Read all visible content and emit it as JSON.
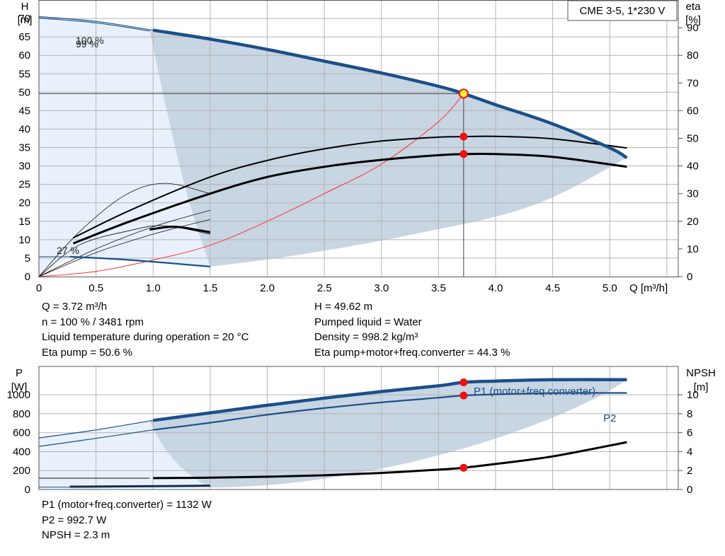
{
  "chart_data": [
    {
      "type": "line",
      "id": "head_efficiency",
      "title": "CME 3-5, 1*230 V",
      "xlabel": "Q [m³/h]",
      "ylabel_left": [
        "H",
        "[m]"
      ],
      "ylabel_right": [
        "eta",
        "[%]"
      ],
      "xlim": [
        0,
        5.6
      ],
      "ylim": [
        0,
        75
      ],
      "ylim_right": [
        0,
        100
      ],
      "x_ticks": [
        "0",
        "0.5",
        "1.0",
        "1.5",
        "2.0",
        "2.5",
        "3.0",
        "3.5",
        "4.0",
        "4.5",
        "5.0"
      ],
      "y_ticks": [
        "0",
        "5",
        "10",
        "15",
        "20",
        "25",
        "30",
        "35",
        "40",
        "45",
        "50",
        "55",
        "60",
        "65",
        "70"
      ],
      "y_ticks_right": [
        "0",
        "10",
        "20",
        "30",
        "40",
        "50",
        "60",
        "70",
        "80",
        "90"
      ],
      "grid": true,
      "annotations": [
        "100 %",
        "99 %",
        "27 %"
      ],
      "series": [
        {
          "key": "h100",
          "x": [
            0,
            0.5,
            1.0,
            1.5,
            2.0,
            2.5,
            3.0,
            3.5,
            3.72,
            4.0,
            4.5,
            5.0,
            5.15
          ],
          "y": [
            70.5,
            69.2,
            66.8,
            64.4,
            61.6,
            58.4,
            55.2,
            51.6,
            49.62,
            46.6,
            41.4,
            34.9,
            32.2
          ]
        },
        {
          "key": "h99",
          "x": [
            0,
            0.5,
            0.97
          ],
          "y": [
            70.1,
            68.8,
            66.6
          ]
        },
        {
          "key": "h27",
          "x": [
            0.27,
            0.8,
            1.5
          ],
          "y": [
            5.4,
            4.5,
            2.7
          ]
        },
        {
          "key": "eta_pump",
          "x": [
            0.3,
            0.8,
            1.5,
            2.0,
            2.5,
            3.0,
            3.5,
            3.72,
            4.0,
            4.5,
            5.15
          ],
          "y": [
            14,
            24,
            36,
            42,
            46.2,
            49,
            50.4,
            50.6,
            50.7,
            49.8,
            46.5
          ]
        },
        {
          "key": "eta_total",
          "x": [
            0.3,
            0.8,
            1.5,
            2.0,
            2.5,
            3.0,
            3.5,
            3.72,
            4.0,
            4.5,
            5.15
          ],
          "y": [
            12,
            20,
            30,
            36,
            39.7,
            42.2,
            43.9,
            44.3,
            44.3,
            43.3,
            39.7
          ]
        },
        {
          "key": "system_curve",
          "x": [
            0,
            0.5,
            1.0,
            1.5,
            2.0,
            2.5,
            3.0,
            3.5,
            3.72
          ],
          "y": [
            0,
            1.4,
            4.5,
            8.5,
            15,
            22.5,
            30.5,
            42,
            49.62
          ]
        }
      ],
      "duty_point": {
        "Q": 3.72,
        "H": 49.62,
        "eta_pump": 50.6,
        "eta_total": 44.3
      }
    },
    {
      "type": "line",
      "id": "power_npsh",
      "ylabel_left": [
        "P",
        "[W]"
      ],
      "ylabel_right": [
        "NPSH",
        "[m]"
      ],
      "xlim": [
        0,
        5.6
      ],
      "ylim": [
        0,
        1300
      ],
      "ylim_right": [
        0,
        13
      ],
      "y_ticks": [
        "0",
        "200",
        "400",
        "600",
        "800",
        "1000"
      ],
      "y_ticks_right": [
        "0",
        "2",
        "4",
        "6",
        "8",
        "10"
      ],
      "grid": true,
      "series": [
        {
          "key": "p1",
          "name": "P1 (motor+freq.converter)",
          "x": [
            0,
            0.5,
            1.0,
            1.5,
            2.0,
            2.5,
            3.0,
            3.5,
            3.72,
            4.0,
            4.5,
            5.15
          ],
          "y": [
            545,
            630,
            730,
            810,
            890,
            965,
            1035,
            1095,
            1132,
            1145,
            1160,
            1160
          ]
        },
        {
          "key": "p2",
          "name": "P2",
          "x": [
            0,
            0.5,
            1.0,
            1.5,
            2.0,
            2.5,
            3.0,
            3.5,
            3.72,
            4.0,
            4.5,
            5.15
          ],
          "y": [
            455,
            540,
            630,
            705,
            790,
            860,
            920,
            970,
            992.7,
            1005,
            1018,
            1020
          ]
        },
        {
          "key": "npsh",
          "x": [
            0.3,
            1.0,
            1.5,
            2.0,
            2.5,
            3.0,
            3.5,
            3.72,
            4.0,
            4.5,
            5.15
          ],
          "y": [
            1.2,
            1.2,
            1.25,
            1.35,
            1.5,
            1.75,
            2.1,
            2.3,
            2.7,
            3.5,
            5.0
          ]
        },
        {
          "key": "p_low",
          "x": [
            0.27,
            1.0,
            1.5
          ],
          "y": [
            30,
            35,
            40
          ]
        }
      ],
      "duty_point": {
        "Q": 3.72,
        "P1": 1132,
        "P2": 992.7,
        "NPSH": 2.3
      }
    }
  ],
  "info": {
    "left": [
      "Q = 3.72 m³/h",
      "n = 100 % / 3481 rpm",
      "Liquid temperature during operation = 20 °C",
      "Eta pump = 50.6 %"
    ],
    "right": [
      "H = 49.62 m",
      "Pumped liquid = Water",
      "Density = 998.2 kg/m³",
      "Eta pump+motor+freq.converter = 44.3 %"
    ],
    "bottom": [
      "P1 (motor+freq.converter) = 1132 W",
      "P2 = 992.7 W",
      "NPSH = 2.3 m"
    ]
  },
  "colors": {
    "area_dark": "#c8d5e3",
    "area_light": "#e8f1fb",
    "curve_blue": "#1b4f8a",
    "curve_black": "#000000",
    "system_red": "#ff3030",
    "point_red": "#ee1111",
    "point_yellow": "#ffee33",
    "grid": "#b4b4b4"
  }
}
